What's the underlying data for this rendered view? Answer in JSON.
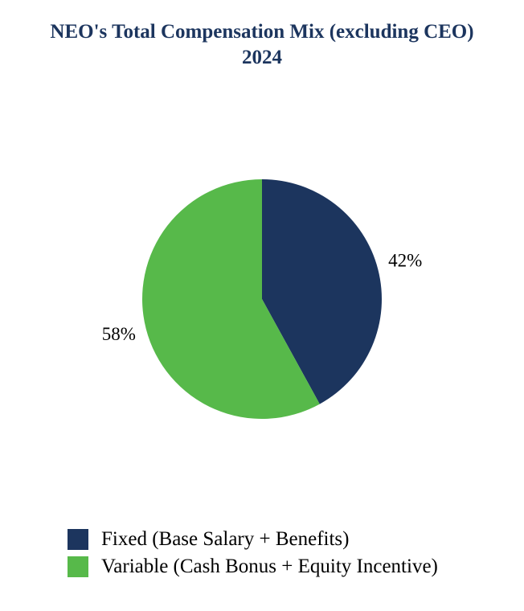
{
  "chart_data": {
    "type": "pie",
    "title": "NEO's Total Compensation Mix (excluding CEO) 2024",
    "title_color": "#1c355e",
    "slices": [
      {
        "label": "Fixed (Base Salary + Benefits)",
        "value": 42,
        "display": "42%",
        "color": "#1c355e"
      },
      {
        "label": "Variable (Cash Bonus + Equity Incentive)",
        "value": 58,
        "display": "58%",
        "color": "#57b94a"
      }
    ],
    "legend_position": "bottom"
  }
}
